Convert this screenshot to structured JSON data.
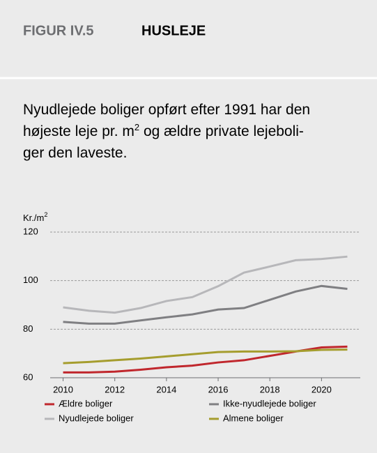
{
  "header": {
    "figure": "FIGUR IV.5",
    "title": "HUSLEJE"
  },
  "subtitle": [
    "Nyudlejede boliger opført efter 1991 har den",
    "højeste leje pr. m",
    "2",
    " og ældre private lejeboli-",
    "ger den laveste."
  ],
  "chart_data": {
    "type": "line",
    "ylabel": "Kr./m",
    "ylabel_sup": "2",
    "x": [
      2010,
      2011,
      2012,
      2013,
      2014,
      2015,
      2016,
      2017,
      2018,
      2019,
      2020,
      2021
    ],
    "series": [
      {
        "name": "Ældre boliger",
        "color": "#c0272d",
        "values": [
          62.2,
          62.2,
          62.5,
          63.3,
          64.3,
          65.0,
          66.3,
          67.2,
          69.0,
          70.8,
          72.5,
          72.8
        ]
      },
      {
        "name": "Ikke-nyudlejede boliger",
        "color": "#7f7f82",
        "values": [
          83.0,
          82.3,
          82.3,
          83.6,
          84.9,
          86.1,
          88.1,
          88.7,
          92.1,
          95.5,
          97.8,
          96.6
        ]
      },
      {
        "name": "Nyudlejede boliger",
        "color": "#b7b7ba",
        "values": [
          89.0,
          87.6,
          86.8,
          88.7,
          91.6,
          93.2,
          97.7,
          103.3,
          105.8,
          108.4,
          108.9,
          109.9
        ]
      },
      {
        "name": "Almene boliger",
        "color": "#a59d2e",
        "values": [
          66.0,
          66.5,
          67.2,
          67.9,
          68.8,
          69.7,
          70.6,
          70.8,
          70.8,
          70.9,
          71.5,
          71.6
        ]
      }
    ],
    "xlim": [
      2009.5,
      2021.5
    ],
    "xticks": [
      2010,
      2012,
      2014,
      2016,
      2018,
      2020
    ],
    "ylim": [
      60,
      120
    ],
    "yticks": [
      60,
      80,
      100,
      120
    ],
    "grid": true
  }
}
